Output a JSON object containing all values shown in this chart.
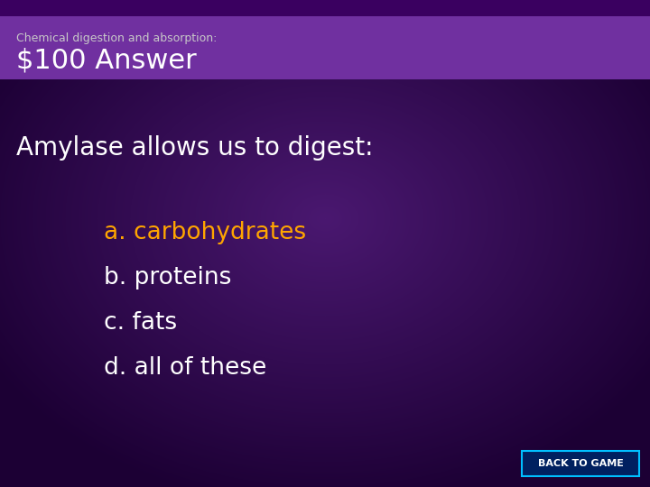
{
  "subtitle": "Chemical digestion and absorption:",
  "title": "$100 Answer",
  "question": "Amylase allows us to digest:",
  "options": [
    {
      "label": "a.",
      "text": " carbohydrates",
      "color": "#FFA500"
    },
    {
      "label": "b.",
      "text": " proteins",
      "color": "#FFFFFF"
    },
    {
      "label": "c.",
      "text": " fats",
      "color": "#FFFFFF"
    },
    {
      "label": "d.",
      "text": " all of these",
      "color": "#FFFFFF"
    }
  ],
  "bg_color_main": "#200040",
  "bg_color_center": "#4a1870",
  "bg_color_header": "#7030a0",
  "header_top_strip": "#3a0060",
  "question_color": "#FFFFFF",
  "subtitle_color": "#C8C8C8",
  "title_color": "#FFFFFF",
  "back_button_text": "BACK TO GAME",
  "back_button_bg": "#002060",
  "back_button_border": "#00BFFF"
}
